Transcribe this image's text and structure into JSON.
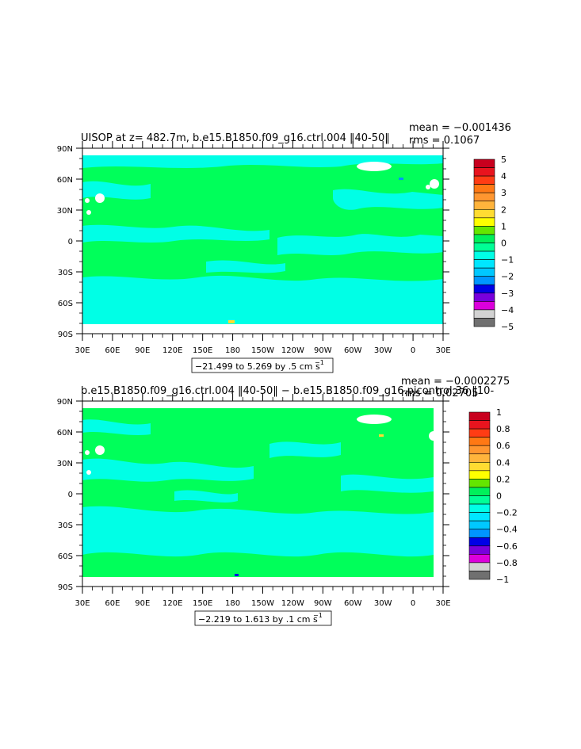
{
  "panels": [
    {
      "title": "UISOP at z= 482.7m, b.e15.B1850.f09_g16.ctrl.004 ‖40-50‖",
      "stats": [
        "mean = −0.001436",
        "rms = 0.1067"
      ],
      "range_label": "−21.499 to 5.269 by .5 cm s",
      "range_superscript": "−1",
      "colorbar_labels": [
        "5",
        "4",
        "3",
        "2",
        "1",
        "0",
        "−1",
        "−2",
        "−3",
        "−4",
        "−5"
      ],
      "colorbar_colors": [
        "#c8001e",
        "#e8141e",
        "#ff3c14",
        "#ff7814",
        "#ff9630",
        "#ffb43c",
        "#ffdc32",
        "#ffff00",
        "#64e600",
        "#00f05a",
        "#00ff96",
        "#00ffe6",
        "#00e6ff",
        "#00c8ff",
        "#0096ff",
        "#0000e6",
        "#7800dc",
        "#dc00dc",
        "#d2d2d2",
        "#707070"
      ]
    },
    {
      "title": "b.e15.B1850.f09_g16.ctrl.004 ‖40-50‖ − b.e15.B1850.f09_g16.picontrol.36 ‖10-",
      "stats": [
        "mean = −0.0002275",
        "rms = 0.02705"
      ],
      "range_label": "−2.219 to 1.613 by .1 cm s",
      "range_superscript": "−1",
      "colorbar_labels": [
        "1",
        "0.8",
        "0.6",
        "0.4",
        "0.2",
        "0",
        "−0.2",
        "−0.4",
        "−0.6",
        "−0.8",
        "−1"
      ],
      "colorbar_colors": [
        "#c8001e",
        "#e8141e",
        "#ff3c14",
        "#ff7814",
        "#ff9630",
        "#ffb43c",
        "#ffdc32",
        "#ffff00",
        "#64e600",
        "#00f05a",
        "#00ff96",
        "#00ffe6",
        "#00e6ff",
        "#00c8ff",
        "#0096ff",
        "#0000e6",
        "#7800dc",
        "#dc00dc",
        "#d2d2d2",
        "#707070"
      ]
    }
  ],
  "lat_labels": [
    "90N",
    "60N",
    "30N",
    "0",
    "30S",
    "60S",
    "90S"
  ],
  "lon_labels": [
    "30E",
    "60E",
    "90E",
    "120E",
    "150E",
    "180",
    "150W",
    "120W",
    "90W",
    "60W",
    "30W",
    "0",
    "30E"
  ],
  "colors": {
    "background_field": "#00ff5a",
    "negative_field": "#00ffe6",
    "land": "#ffffff"
  }
}
